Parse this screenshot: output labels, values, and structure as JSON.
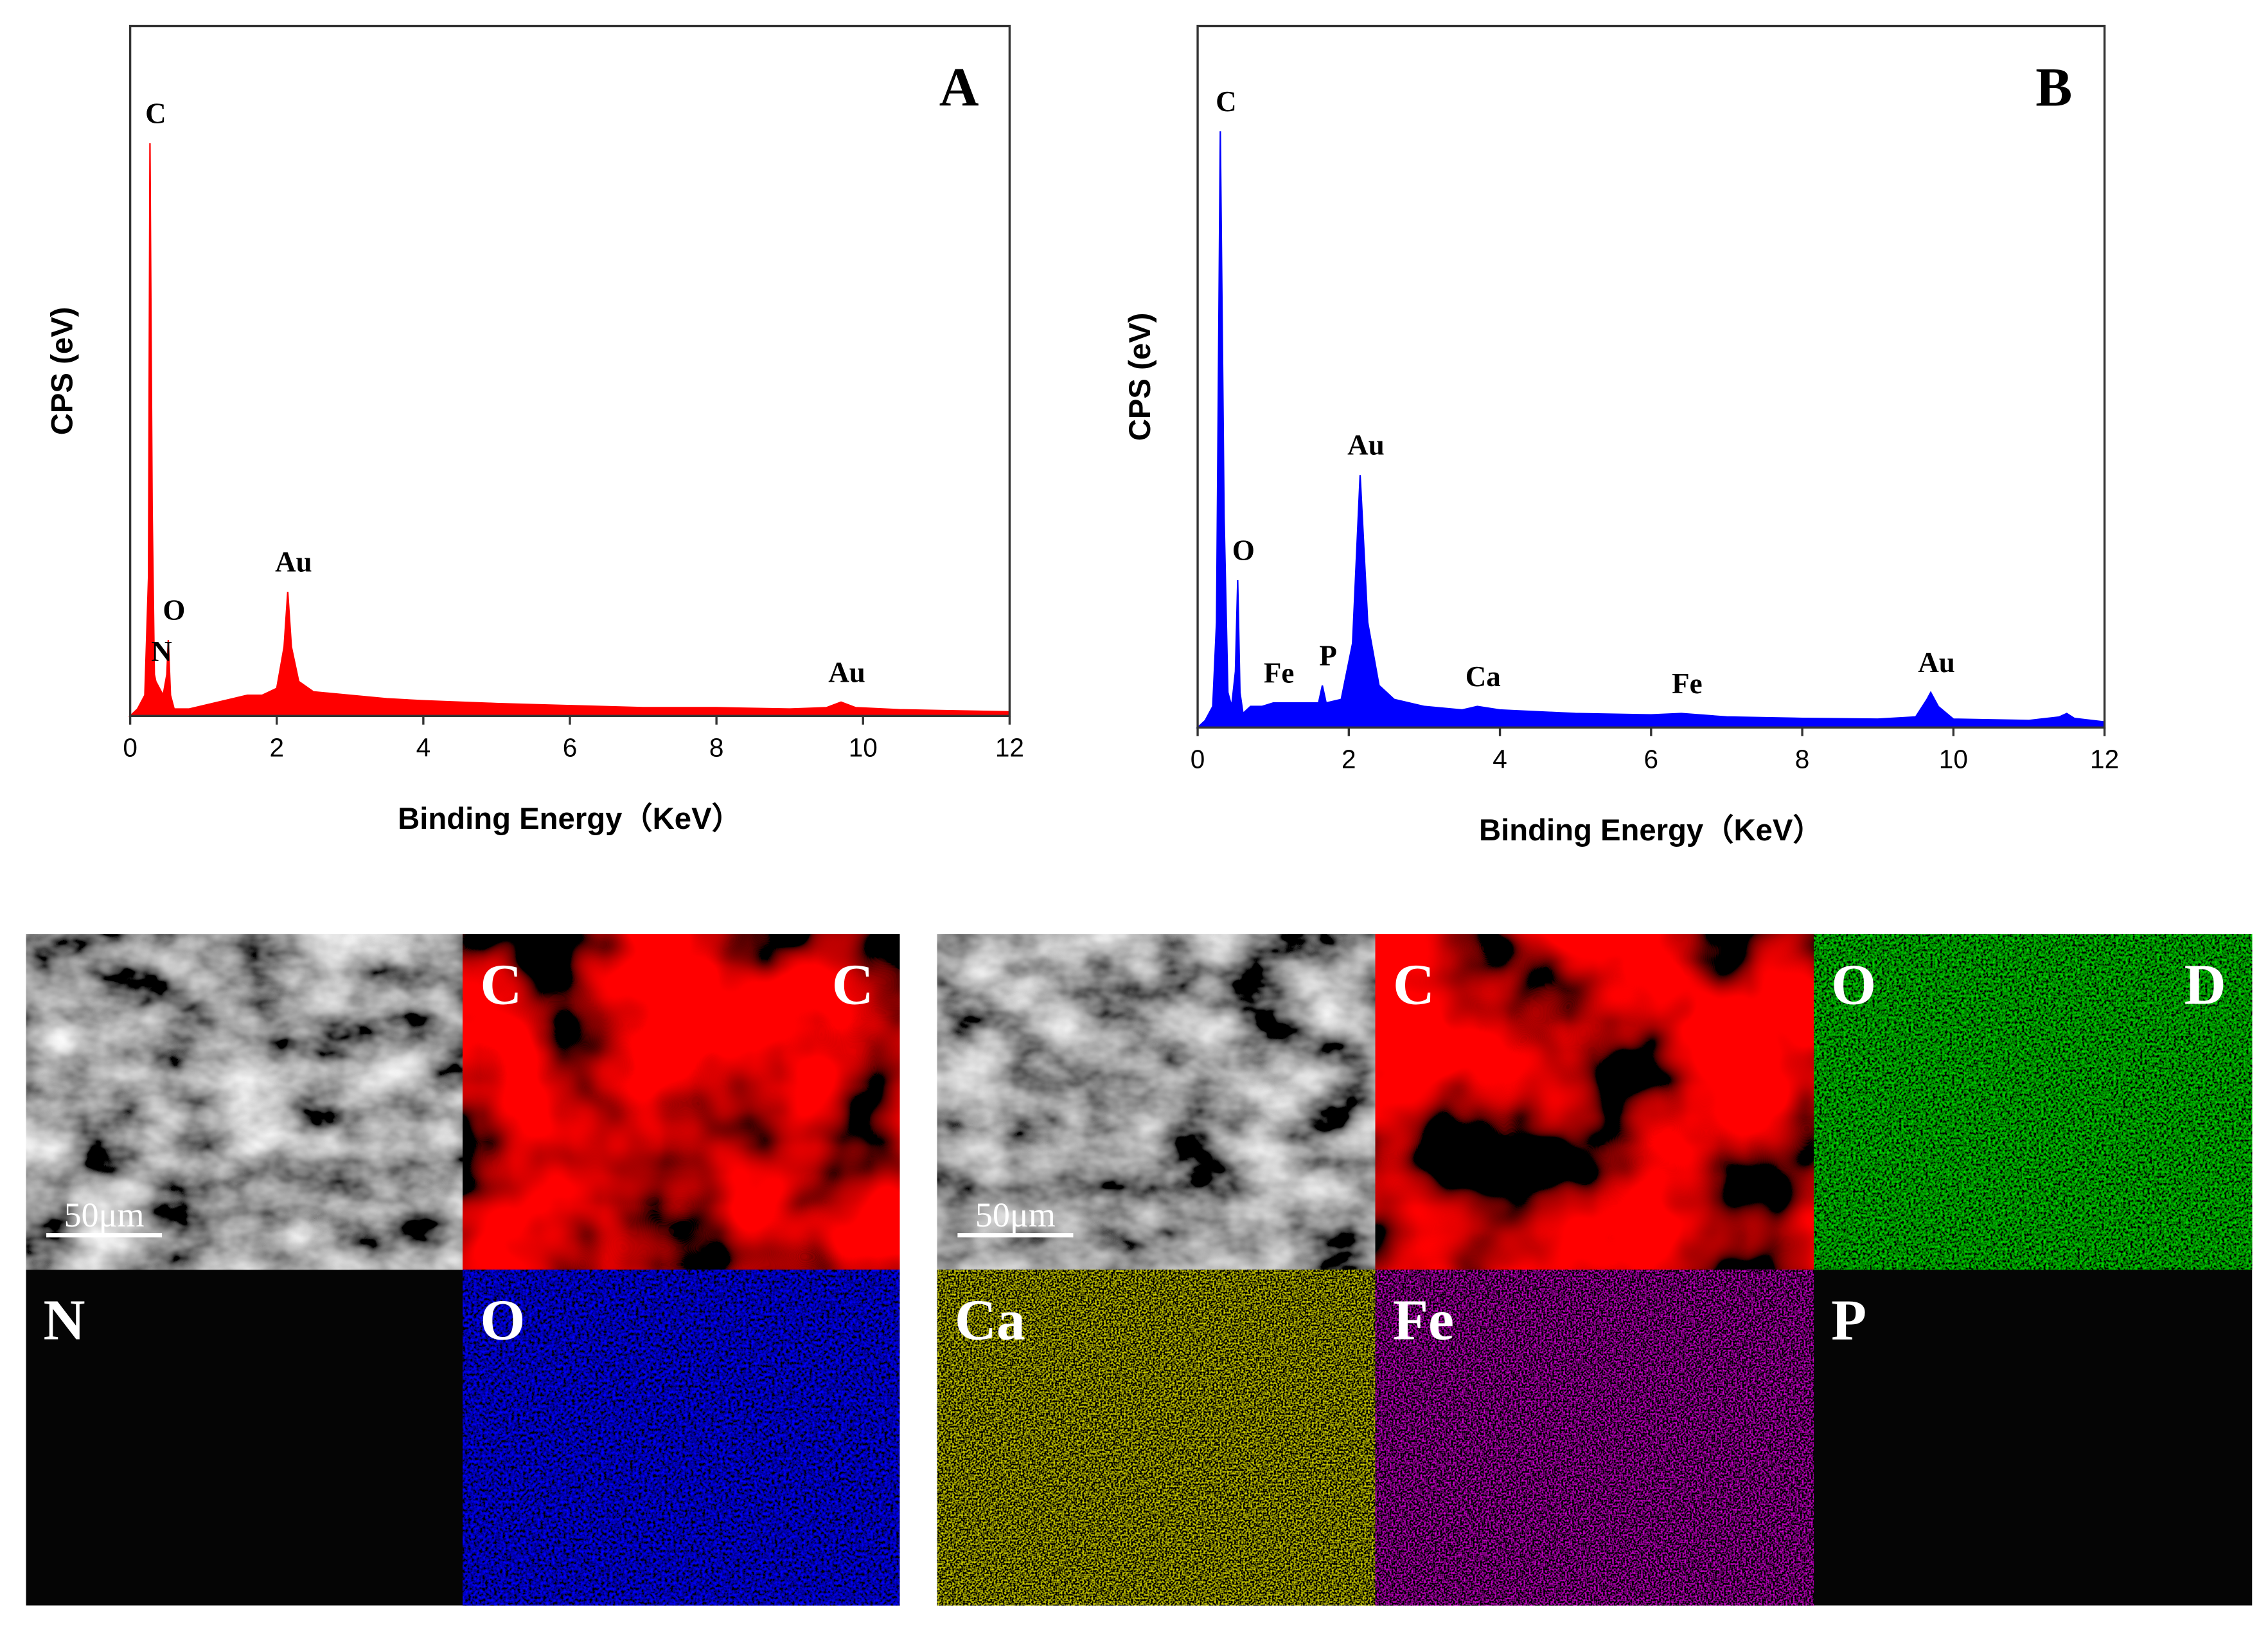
{
  "chart_data": [
    {
      "type": "area",
      "label": "A",
      "color": "#ff0000",
      "xlabel": "Binding Energy（KeV）",
      "ylabel": "CPS (eV)",
      "xlim": [
        0,
        12
      ],
      "xticks": [
        0,
        2,
        4,
        6,
        8,
        10,
        12
      ],
      "ylim": [
        0,
        100
      ],
      "x": [
        0,
        0.1,
        0.2,
        0.25,
        0.27,
        0.3,
        0.33,
        0.35,
        0.4,
        0.45,
        0.5,
        0.52,
        0.55,
        0.6,
        0.8,
        1.0,
        1.2,
        1.4,
        1.6,
        1.8,
        2.0,
        2.1,
        2.15,
        2.2,
        2.3,
        2.5,
        3,
        3.5,
        4,
        5,
        6,
        7,
        8,
        9,
        9.5,
        9.7,
        9.9,
        10.5,
        11,
        12
      ],
      "values": [
        0,
        1,
        3,
        20,
        83,
        30,
        6,
        5,
        4,
        3,
        6,
        11,
        3,
        1,
        1,
        1.5,
        2,
        2.5,
        3,
        3,
        4,
        10,
        18,
        10,
        5,
        3.5,
        3,
        2.5,
        2.2,
        1.8,
        1.5,
        1.2,
        1.2,
        1,
        1.2,
        2,
        1.2,
        0.9,
        0.8,
        0.6
      ],
      "annotations": [
        {
          "text": "C",
          "x": 0.27
        },
        {
          "text": "N",
          "x": 0.35
        },
        {
          "text": "O",
          "x": 0.52
        },
        {
          "text": "Au",
          "x": 2.15
        },
        {
          "text": "Au",
          "x": 9.7
        }
      ]
    },
    {
      "type": "area",
      "label": "B",
      "color": "#0000ff",
      "xlabel": "Binding Energy（KeV）",
      "ylabel": "CPS (eV)",
      "xlim": [
        0,
        12
      ],
      "xticks": [
        0,
        2,
        4,
        6,
        8,
        10,
        12
      ],
      "ylim": [
        0,
        100
      ],
      "x": [
        0,
        0.1,
        0.2,
        0.25,
        0.3,
        0.35,
        0.4,
        0.45,
        0.5,
        0.53,
        0.56,
        0.6,
        0.7,
        0.85,
        1.0,
        1.2,
        1.4,
        1.6,
        1.65,
        1.7,
        1.9,
        2.05,
        2.15,
        2.25,
        2.4,
        2.6,
        3,
        3.5,
        3.7,
        4,
        5,
        6,
        6.4,
        7,
        8,
        9,
        9.5,
        9.65,
        9.7,
        9.8,
        10,
        11,
        11.4,
        11.5,
        11.6,
        12
      ],
      "values": [
        0,
        1,
        3,
        15,
        85,
        30,
        5,
        3,
        8,
        21,
        5,
        2,
        3,
        3,
        3.5,
        3.5,
        3.5,
        3.5,
        6,
        3.5,
        4,
        12,
        36,
        15,
        6,
        4,
        3,
        2.5,
        3,
        2.5,
        2,
        1.8,
        2,
        1.5,
        1.3,
        1.2,
        1.5,
        4,
        5,
        3,
        1.2,
        1,
        1.5,
        2,
        1.3,
        0.8
      ],
      "annotations": [
        {
          "text": "C",
          "x": 0.3
        },
        {
          "text": "O",
          "x": 0.53
        },
        {
          "text": "Fe",
          "x": 1.0
        },
        {
          "text": "P",
          "x": 1.65
        },
        {
          "text": "Au",
          "x": 2.15
        },
        {
          "text": "Ca",
          "x": 3.7
        },
        {
          "text": "Fe",
          "x": 6.4
        },
        {
          "text": "Au",
          "x": 9.7
        }
      ]
    }
  ],
  "maps": [
    {
      "figure_label": "C",
      "scale_bar": "50μm",
      "elements": [
        "C",
        "N",
        "O"
      ]
    },
    {
      "figure_label": "D",
      "scale_bar": "50μm",
      "elements": [
        "C",
        "O",
        "Ca",
        "Fe",
        "P"
      ]
    }
  ]
}
